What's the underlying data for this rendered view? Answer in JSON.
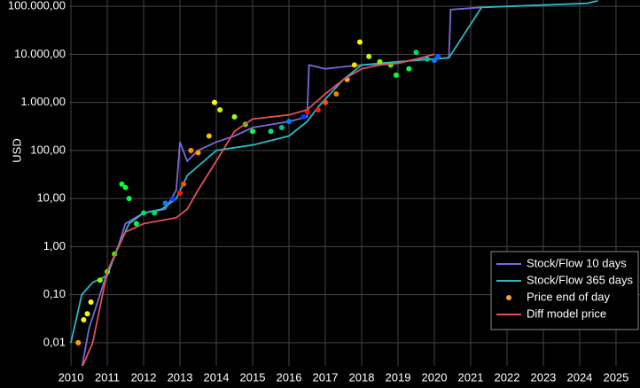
{
  "chart_data": {
    "type": "line",
    "y_label": "USD",
    "yscale": "log",
    "grid": true,
    "legend": "lower right",
    "xlim": [
      2009.95,
      2025.66
    ],
    "ylim": [
      0.0033,
      135000
    ],
    "xticks": [
      2010,
      2011,
      2012,
      2013,
      2014,
      2015,
      2016,
      2017,
      2018,
      2019,
      2020,
      2021,
      2022,
      2023,
      2024,
      2025
    ],
    "yticks": [
      {
        "value": 0.01,
        "label": "0,01"
      },
      {
        "value": 0.1,
        "label": "0,10"
      },
      {
        "value": 1,
        "label": "1,00"
      },
      {
        "value": 10,
        "label": "10,00"
      },
      {
        "value": 100,
        "label": "100,00"
      },
      {
        "value": 1000,
        "label": "1.000,00"
      },
      {
        "value": 10000,
        "label": "10.000,00"
      },
      {
        "value": 100000,
        "label": "100.000,00"
      }
    ],
    "series": [
      {
        "name": "Stock/Flow 10 days",
        "type": "line",
        "color": "#7b68d8",
        "x": [
          2010.3,
          2010.5,
          2010.8,
          2011.0,
          2011.3,
          2011.5,
          2012.0,
          2012.6,
          2012.9,
          2013.0,
          2013.2,
          2013.5,
          2014.0,
          2014.5,
          2015.0,
          2016.0,
          2016.5,
          2016.55,
          2017.0,
          2017.5,
          2018.0,
          2019.0,
          2019.5,
          2020.0,
          2020.4,
          2020.45,
          2021.3
        ],
        "values": [
          0.003,
          0.02,
          0.1,
          0.3,
          1,
          3,
          5,
          6,
          15,
          150,
          60,
          100,
          150,
          200,
          300,
          400,
          500,
          6000,
          5000,
          5500,
          6000,
          6500,
          8000,
          8000,
          8500,
          85000,
          95000
        ]
      },
      {
        "name": "Stock/Flow 365 days",
        "type": "line",
        "color": "#2bb8c8",
        "x": [
          2010.0,
          2010.3,
          2010.6,
          2011.0,
          2011.3,
          2011.6,
          2012.0,
          2012.5,
          2012.9,
          2013.2,
          2014.0,
          2015.0,
          2016.0,
          2016.5,
          2016.8,
          2017.5,
          2018.0,
          2019.0,
          2020.0,
          2020.4,
          2021.3,
          2024.2,
          2024.5
        ],
        "values": [
          0.01,
          0.1,
          0.18,
          0.25,
          1,
          3,
          5,
          6,
          10,
          30,
          100,
          130,
          200,
          400,
          800,
          3000,
          6000,
          7000,
          8000,
          8500,
          95000,
          115000,
          130000
        ]
      },
      {
        "name": "Price end of day",
        "type": "scatter",
        "color": "#f5a623",
        "x": [
          2010.2,
          2010.35,
          2010.45,
          2010.55,
          2010.8,
          2011.0,
          2011.2,
          2011.4,
          2011.5,
          2011.6,
          2011.8,
          2012.0,
          2012.3,
          2012.6,
          2012.8,
          2013.0,
          2013.1,
          2013.3,
          2013.5,
          2013.8,
          2013.95,
          2014.1,
          2014.5,
          2014.8,
          2015.0,
          2015.5,
          2015.8,
          2016.0,
          2016.4,
          2016.5,
          2016.8,
          2017.0,
          2017.3,
          2017.6,
          2017.8,
          2017.95,
          2018.2,
          2018.5,
          2018.8,
          2018.95,
          2019.3,
          2019.5,
          2019.8,
          2020.0,
          2020.1
        ],
        "values": [
          0.01,
          0.03,
          0.04,
          0.07,
          0.2,
          0.3,
          0.7,
          20,
          17,
          10,
          3,
          5,
          5,
          8,
          10,
          13,
          20,
          100,
          90,
          200,
          1000,
          700,
          500,
          350,
          250,
          250,
          300,
          400,
          500,
          650,
          700,
          1000,
          1500,
          3000,
          6000,
          18000,
          9000,
          7000,
          6000,
          3700,
          5000,
          11000,
          8000,
          7500,
          9000
        ],
        "point_colors": [
          "#ffa500",
          "#ffff00",
          "#e0ff00",
          "#ffff00",
          "#80ff00",
          "#60ff00",
          "#40ff00",
          "#00ff40",
          "#00ff40",
          "#00ff40",
          "#00ff40",
          "#00e060",
          "#00e060",
          "#0080ff",
          "#0040ff",
          "#ff2000",
          "#ff5000",
          "#ff9000",
          "#ffa000",
          "#ffc000",
          "#ffff00",
          "#c0ff00",
          "#a0ff00",
          "#60ff00",
          "#00ff40",
          "#00e080",
          "#00c0a0",
          "#0080ff",
          "#0040ff",
          "#ff0000",
          "#ff2000",
          "#ff5000",
          "#ff8000",
          "#ffb000",
          "#ffe000",
          "#ffff00",
          "#c0ff00",
          "#80ff00",
          "#40ff00",
          "#00ff40",
          "#00ff40",
          "#00e060",
          "#00c0a0",
          "#0080ff",
          "#0060ff"
        ]
      },
      {
        "name": "Diff model price",
        "type": "line",
        "color": "#e0505a",
        "x": [
          2010.3,
          2010.6,
          2011.0,
          2011.5,
          2012.0,
          2012.5,
          2012.9,
          2013.2,
          2013.5,
          2014.0,
          2014.5,
          2015.0,
          2016.0,
          2016.5,
          2017.0,
          2017.5,
          2018.0,
          2018.5,
          2019.0,
          2019.5,
          2020.0
        ],
        "values": [
          0.003,
          0.01,
          0.3,
          2,
          3,
          3.5,
          4,
          6,
          15,
          60,
          250,
          450,
          550,
          700,
          1500,
          3000,
          5000,
          6000,
          6500,
          8000,
          10000
        ]
      }
    ]
  }
}
